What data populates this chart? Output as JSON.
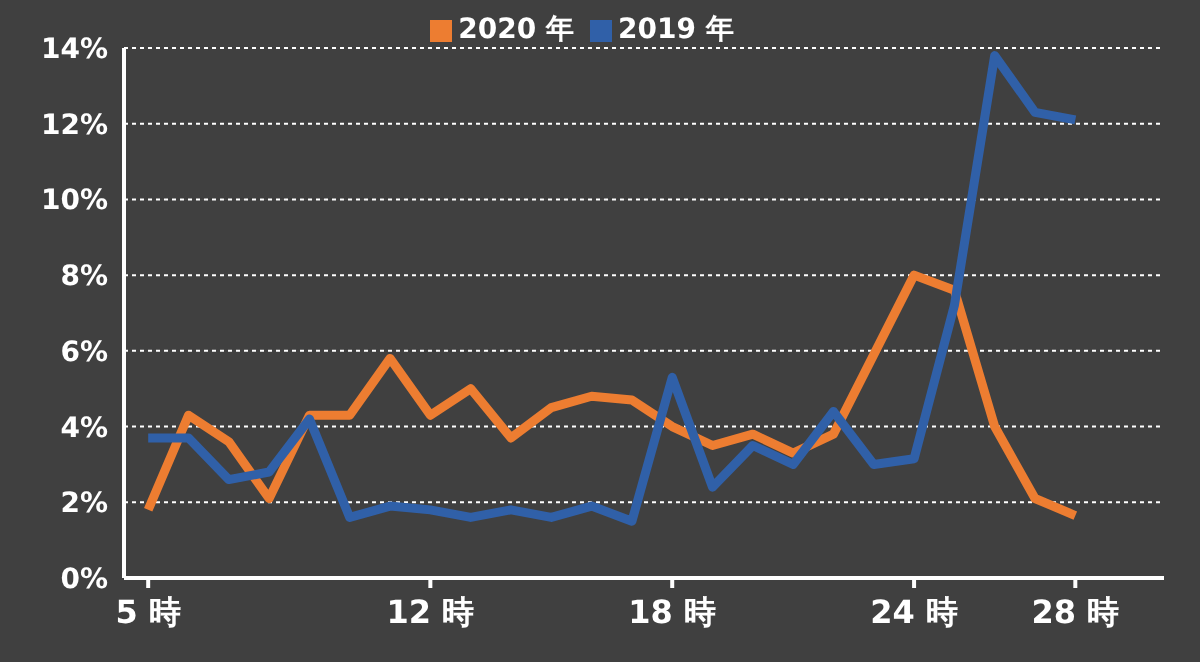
{
  "chart_data": {
    "type": "line",
    "x": [
      5,
      6,
      7,
      8,
      9,
      10,
      11,
      12,
      13,
      14,
      15,
      16,
      17,
      18,
      19,
      20,
      21,
      22,
      23,
      24,
      25,
      26,
      27,
      28
    ],
    "series": [
      {
        "name": "2020 年",
        "color": "#ed7d31",
        "values": [
          1.8,
          4.3,
          3.6,
          2.1,
          4.3,
          4.3,
          5.8,
          4.3,
          5.0,
          3.7,
          4.5,
          4.8,
          4.7,
          4.0,
          3.5,
          3.8,
          3.3,
          3.8,
          5.9,
          8.0,
          7.6,
          4.0,
          2.1,
          1.65
        ]
      },
      {
        "name": "2019 年",
        "color": "#3060a8",
        "values": [
          3.7,
          3.7,
          2.6,
          2.8,
          4.2,
          1.6,
          1.9,
          1.8,
          1.6,
          1.8,
          1.6,
          1.9,
          1.5,
          5.3,
          2.4,
          3.5,
          3.0,
          4.4,
          3.0,
          3.15,
          7.2,
          13.8,
          12.3,
          12.1
        ]
      }
    ],
    "xlim": [
      4.4,
      30.2
    ],
    "xticks": [
      {
        "value": 5,
        "label": "5 時"
      },
      {
        "value": 12,
        "label": "12 時"
      },
      {
        "value": 18,
        "label": "18 時"
      },
      {
        "value": 24,
        "label": "24 時"
      },
      {
        "value": 28,
        "label": "28 時"
      }
    ],
    "ylim": [
      0,
      14
    ],
    "yticks": [
      {
        "value": 0,
        "label": "0%"
      },
      {
        "value": 2,
        "label": "2%"
      },
      {
        "value": 4,
        "label": "4%"
      },
      {
        "value": 6,
        "label": "6%"
      },
      {
        "value": 8,
        "label": "8%"
      },
      {
        "value": 10,
        "label": "10%"
      },
      {
        "value": 12,
        "label": "12%"
      },
      {
        "value": 14,
        "label": "14%"
      }
    ],
    "grid": "y",
    "legend": "top",
    "marker": "none",
    "line_style": "solid"
  }
}
